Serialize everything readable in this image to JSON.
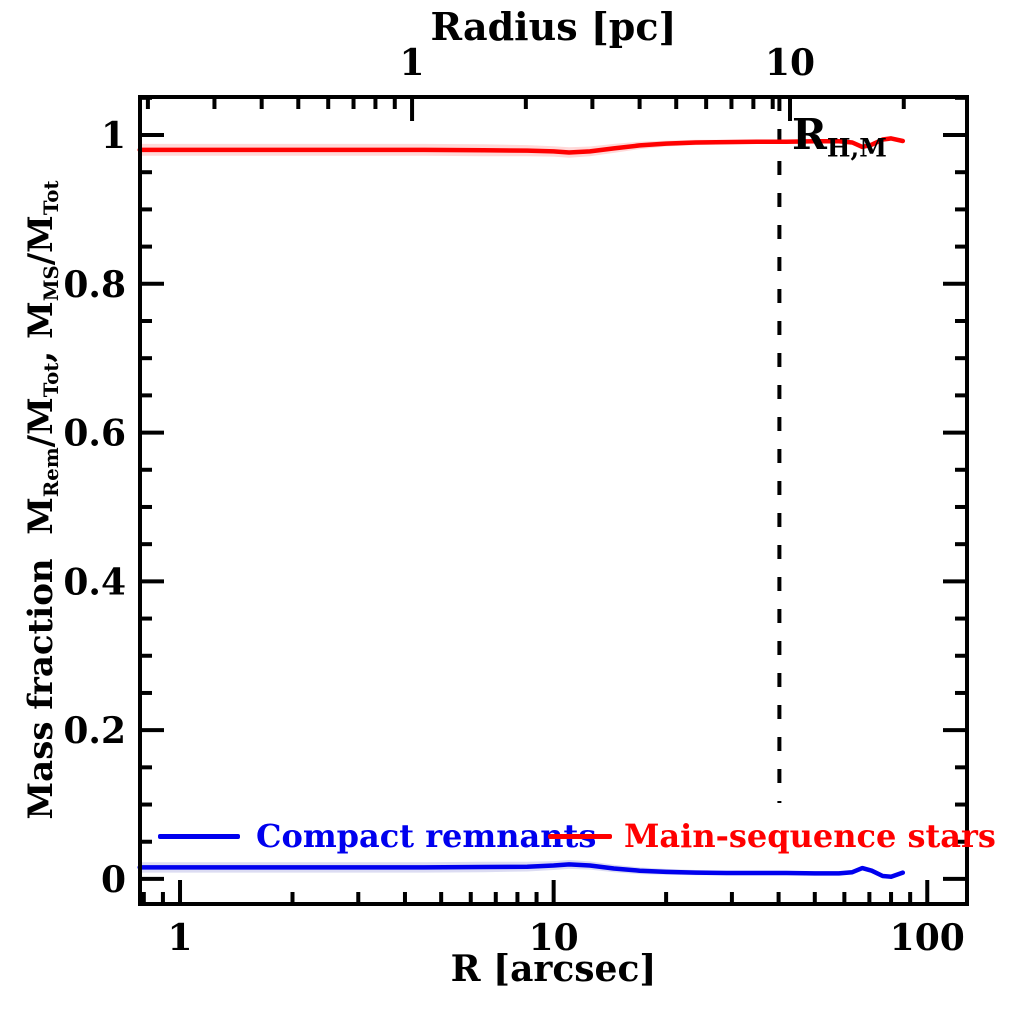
{
  "figure": {
    "background": "#ffffff",
    "frame_color": "#000000"
  },
  "chart_data": {
    "type": "line",
    "title": "",
    "top_axis": {
      "title": "Radius [pc]",
      "scale": "log",
      "range": [
        0.1906,
        29.4
      ],
      "ticks": [
        {
          "v": 1,
          "label": "1"
        },
        {
          "v": 10,
          "label": "10"
        }
      ]
    },
    "bottom_axis": {
      "title": "R [arcsec]",
      "scale": "log",
      "range": [
        0.7814,
        127.75
      ],
      "ticks": [
        {
          "v": 1,
          "label": "1"
        },
        {
          "v": 10,
          "label": "10"
        },
        {
          "v": 100,
          "label": "100"
        }
      ]
    },
    "y_axis": {
      "label_plain": "Mass fraction  M_Rem/M_Tot, M_MS/M_Tot",
      "label_parts": {
        "t1": "Mass fraction  M",
        "s1": "Rem",
        "t2": "/M",
        "s2": "Tot",
        "t3": ", M",
        "s3": "MS",
        "t4": "/M",
        "s4": "Tot"
      },
      "scale": "linear",
      "range": [
        -0.0337,
        1.0511
      ],
      "minor_step": 0.05,
      "major_step": 0.2,
      "ticks": [
        {
          "v": 0,
          "label": "0"
        },
        {
          "v": 0.2,
          "label": "0.2"
        },
        {
          "v": 0.4,
          "label": "0.4"
        },
        {
          "v": 0.6,
          "label": "0.6"
        },
        {
          "v": 0.8,
          "label": "0.8"
        },
        {
          "v": 1,
          "label": "1"
        }
      ]
    },
    "grid": false,
    "legend_position": "inside-bottom",
    "series": [
      {
        "name": "Compact remnants",
        "color": "#0000ee",
        "band_color": "#dcdcf2",
        "x": [
          0.78,
          1.2,
          2.0,
          3.0,
          4.5,
          6.5,
          8.5,
          10.0,
          11.0,
          12.5,
          14.5,
          17.0,
          20.0,
          24.0,
          29.0,
          35.0,
          42.0,
          50.0,
          58.0,
          63.0,
          67.0,
          71.0,
          76.0,
          80.0,
          86.0
        ],
        "y": [
          0.0155,
          0.0155,
          0.0155,
          0.0155,
          0.0155,
          0.016,
          0.0165,
          0.018,
          0.0195,
          0.018,
          0.014,
          0.011,
          0.0095,
          0.0085,
          0.008,
          0.008,
          0.008,
          0.0075,
          0.0075,
          0.009,
          0.0145,
          0.011,
          0.004,
          0.003,
          0.0085
        ],
        "band": [
          0.007,
          0.007,
          0.007,
          0.007,
          0.007,
          0.007,
          0.0065,
          0.006,
          0.006,
          0.0055,
          0.005,
          0.0045,
          0.004,
          0.0035,
          0.003,
          0.003,
          0.003,
          0.0025,
          0.0025,
          0.002,
          0.002,
          0.002,
          0.002,
          0.002,
          0.002
        ]
      },
      {
        "name": "Main-sequence stars",
        "color": "#ff0000",
        "band_color": "#ffd9d9",
        "x": [
          0.78,
          1.2,
          2.0,
          3.0,
          4.5,
          6.5,
          8.5,
          10.0,
          11.0,
          12.5,
          14.5,
          17.0,
          20.0,
          24.0,
          29.0,
          35.0,
          42.0,
          50.0,
          58.0,
          63.0,
          67.0,
          71.0,
          76.0,
          80.0,
          86.0
        ],
        "y": [
          0.98,
          0.98,
          0.98,
          0.98,
          0.98,
          0.9795,
          0.979,
          0.978,
          0.9765,
          0.978,
          0.982,
          0.986,
          0.9885,
          0.99,
          0.9905,
          0.991,
          0.991,
          0.9915,
          0.9915,
          0.99,
          0.984,
          0.987,
          0.994,
          0.9955,
          0.992
        ],
        "band": [
          0.008,
          0.008,
          0.008,
          0.008,
          0.008,
          0.008,
          0.0075,
          0.007,
          0.007,
          0.0065,
          0.006,
          0.005,
          0.004,
          0.0035,
          0.003,
          0.003,
          0.003,
          0.0025,
          0.0025,
          0.002,
          0.002,
          0.002,
          0.002,
          0.002,
          0.002
        ]
      }
    ],
    "annotation": {
      "type": "vertical-dashed-line",
      "x_arcsec": 40.2,
      "y_from": 0.102,
      "y_to": 1.0511,
      "color": "#000000",
      "label_main": "R",
      "label_sub": "H,M"
    },
    "legend": [
      {
        "label": "Compact remnants",
        "color": "#0000ee"
      },
      {
        "label": "Main-sequence stars",
        "color": "#ff0000"
      }
    ]
  }
}
